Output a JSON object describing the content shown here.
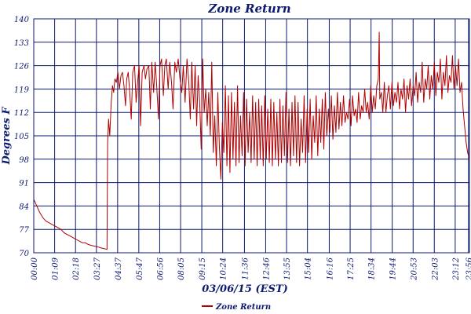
{
  "chart_data": {
    "type": "line",
    "title": "Zone Return",
    "xlabel": "03/06/15 (EST)",
    "ylabel": "Degrees F",
    "ylim": [
      70,
      140
    ],
    "yticks": [
      70,
      77,
      84,
      91,
      98,
      105,
      112,
      119,
      126,
      133,
      140
    ],
    "xlim": [
      0,
      1439
    ],
    "x_tick_labels": [
      "00:00",
      "01:09",
      "02:18",
      "03:27",
      "04:37",
      "05:47",
      "06:56",
      "08:05",
      "09:15",
      "10:24",
      "11:36",
      "12:46",
      "13:55",
      "15:04",
      "16:16",
      "17:25",
      "18:34",
      "19:44",
      "20:53",
      "22:03",
      "23:12",
      "23:56"
    ],
    "x_tick_minutes": [
      0,
      69,
      138,
      207,
      277,
      347,
      416,
      485,
      555,
      624,
      696,
      766,
      835,
      904,
      976,
      1045,
      1114,
      1184,
      1253,
      1323,
      1392,
      1436
    ],
    "grid": true,
    "legend_position": "bottom-left",
    "line_color": "#b00000",
    "series": [
      {
        "name": "Zone Return",
        "points": [
          [
            0,
            86
          ],
          [
            10,
            84
          ],
          [
            20,
            82
          ],
          [
            30,
            80.5
          ],
          [
            40,
            79.5
          ],
          [
            50,
            79
          ],
          [
            60,
            78.5
          ],
          [
            70,
            78
          ],
          [
            80,
            77.5
          ],
          [
            90,
            77
          ],
          [
            100,
            76
          ],
          [
            110,
            75.5
          ],
          [
            120,
            75
          ],
          [
            130,
            74.5
          ],
          [
            140,
            74
          ],
          [
            150,
            73.5
          ],
          [
            160,
            73
          ],
          [
            170,
            73
          ],
          [
            180,
            72.5
          ],
          [
            190,
            72.2
          ],
          [
            200,
            72
          ],
          [
            210,
            71.8
          ],
          [
            220,
            71.5
          ],
          [
            230,
            71.3
          ],
          [
            242,
            71
          ],
          [
            244,
            103
          ],
          [
            247,
            110
          ],
          [
            251,
            105
          ],
          [
            256,
            115
          ],
          [
            260,
            120
          ],
          [
            264,
            118
          ],
          [
            268,
            122
          ],
          [
            273,
            121
          ],
          [
            278,
            124
          ],
          [
            283,
            119
          ],
          [
            288,
            123
          ],
          [
            293,
            124
          ],
          [
            298,
            120
          ],
          [
            303,
            114
          ],
          [
            307,
            122
          ],
          [
            312,
            124
          ],
          [
            317,
            118
          ],
          [
            322,
            110
          ],
          [
            327,
            124
          ],
          [
            333,
            126
          ],
          [
            338,
            115
          ],
          [
            343,
            121
          ],
          [
            348,
            126
          ],
          [
            353,
            108
          ],
          [
            358,
            124
          ],
          [
            364,
            126
          ],
          [
            369,
            122
          ],
          [
            374,
            125
          ],
          [
            380,
            126
          ],
          [
            385,
            113
          ],
          [
            390,
            127
          ],
          [
            396,
            118
          ],
          [
            401,
            127
          ],
          [
            406,
            120
          ],
          [
            412,
            110
          ],
          [
            417,
            126
          ],
          [
            422,
            128
          ],
          [
            428,
            117
          ],
          [
            433,
            126
          ],
          [
            438,
            128
          ],
          [
            444,
            119
          ],
          [
            449,
            127
          ],
          [
            455,
            121
          ],
          [
            460,
            113
          ],
          [
            466,
            127
          ],
          [
            471,
            124
          ],
          [
            477,
            128
          ],
          [
            483,
            122
          ],
          [
            489,
            118
          ],
          [
            494,
            126
          ],
          [
            500,
            115
          ],
          [
            506,
            128
          ],
          [
            512,
            121
          ],
          [
            517,
            110
          ],
          [
            522,
            127
          ],
          [
            528,
            113
          ],
          [
            533,
            126
          ],
          [
            538,
            108
          ],
          [
            543,
            123
          ],
          [
            548,
            115
          ],
          [
            553,
            101
          ],
          [
            558,
            128
          ],
          [
            563,
            112
          ],
          [
            568,
            119
          ],
          [
            573,
            108
          ],
          [
            578,
            118
          ],
          [
            583,
            105
          ],
          [
            588,
            127
          ],
          [
            593,
            100
          ],
          [
            598,
            111
          ],
          [
            603,
            96
          ],
          [
            608,
            118
          ],
          [
            613,
            102
          ],
          [
            618,
            92
          ],
          [
            623,
            109
          ],
          [
            628,
            100
          ],
          [
            633,
            120
          ],
          [
            638,
            96
          ],
          [
            643,
            117
          ],
          [
            648,
            94
          ],
          [
            653,
            118
          ],
          [
            658,
            98
          ],
          [
            663,
            115
          ],
          [
            668,
            96
          ],
          [
            673,
            120
          ],
          [
            678,
            97
          ],
          [
            683,
            111
          ],
          [
            688,
            99
          ],
          [
            693,
            118
          ],
          [
            698,
            96
          ],
          [
            703,
            116
          ],
          [
            708,
            100
          ],
          [
            713,
            112
          ],
          [
            718,
            97
          ],
          [
            723,
            117
          ],
          [
            728,
            98
          ],
          [
            733,
            115
          ],
          [
            738,
            96
          ],
          [
            743,
            116
          ],
          [
            748,
            98
          ],
          [
            753,
            114
          ],
          [
            758,
            96
          ],
          [
            763,
            117
          ],
          [
            768,
            98
          ],
          [
            773,
            113
          ],
          [
            778,
            97
          ],
          [
            783,
            116
          ],
          [
            788,
            96
          ],
          [
            793,
            115
          ],
          [
            798,
            98
          ],
          [
            803,
            112
          ],
          [
            808,
            96
          ],
          [
            813,
            116
          ],
          [
            818,
            97
          ],
          [
            823,
            114
          ],
          [
            828,
            99
          ],
          [
            833,
            118
          ],
          [
            838,
            97
          ],
          [
            843,
            113
          ],
          [
            848,
            96
          ],
          [
            853,
            115
          ],
          [
            858,
            99
          ],
          [
            863,
            117
          ],
          [
            868,
            97
          ],
          [
            873,
            115
          ],
          [
            878,
            96
          ],
          [
            883,
            110
          ],
          [
            888,
            100
          ],
          [
            893,
            117
          ],
          [
            898,
            97
          ],
          [
            903,
            113
          ],
          [
            908,
            100
          ],
          [
            913,
            116
          ],
          [
            918,
            98
          ],
          [
            923,
            111
          ],
          [
            928,
            103
          ],
          [
            933,
            117
          ],
          [
            938,
            99
          ],
          [
            943,
            113
          ],
          [
            948,
            103
          ],
          [
            953,
            116
          ],
          [
            958,
            101
          ],
          [
            963,
            118
          ],
          [
            968,
            105
          ],
          [
            973,
            113
          ],
          [
            978,
            106
          ],
          [
            983,
            117
          ],
          [
            988,
            104
          ],
          [
            993,
            114
          ],
          [
            998,
            106
          ],
          [
            1003,
            118
          ],
          [
            1008,
            107
          ],
          [
            1013,
            115
          ],
          [
            1018,
            108
          ],
          [
            1023,
            117
          ],
          [
            1028,
            109
          ],
          [
            1033,
            112
          ],
          [
            1038,
            110
          ],
          [
            1043,
            116
          ],
          [
            1048,
            108
          ],
          [
            1053,
            117
          ],
          [
            1058,
            111
          ],
          [
            1063,
            113
          ],
          [
            1068,
            109
          ],
          [
            1073,
            118
          ],
          [
            1078,
            110
          ],
          [
            1083,
            114
          ],
          [
            1088,
            112
          ],
          [
            1093,
            119
          ],
          [
            1098,
            112
          ],
          [
            1103,
            115
          ],
          [
            1108,
            110
          ],
          [
            1113,
            120
          ],
          [
            1118,
            112
          ],
          [
            1123,
            117
          ],
          [
            1128,
            113
          ],
          [
            1133,
            120
          ],
          [
            1138,
            122
          ],
          [
            1141,
            136
          ],
          [
            1143,
            116
          ],
          [
            1148,
            118
          ],
          [
            1153,
            112
          ],
          [
            1158,
            121
          ],
          [
            1163,
            112
          ],
          [
            1168,
            117
          ],
          [
            1173,
            120
          ],
          [
            1178,
            113
          ],
          [
            1183,
            121
          ],
          [
            1188,
            114
          ],
          [
            1193,
            118
          ],
          [
            1198,
            115
          ],
          [
            1203,
            121
          ],
          [
            1208,
            113
          ],
          [
            1213,
            119
          ],
          [
            1218,
            116
          ],
          [
            1223,
            122
          ],
          [
            1228,
            112
          ],
          [
            1233,
            120
          ],
          [
            1238,
            116
          ],
          [
            1243,
            122
          ],
          [
            1248,
            114
          ],
          [
            1253,
            120
          ],
          [
            1258,
            117
          ],
          [
            1263,
            124
          ],
          [
            1268,
            115
          ],
          [
            1273,
            121
          ],
          [
            1278,
            118
          ],
          [
            1283,
            127
          ],
          [
            1288,
            115
          ],
          [
            1293,
            122
          ],
          [
            1298,
            119
          ],
          [
            1303,
            126
          ],
          [
            1308,
            116
          ],
          [
            1313,
            123
          ],
          [
            1318,
            119
          ],
          [
            1323,
            127
          ],
          [
            1328,
            117
          ],
          [
            1333,
            124
          ],
          [
            1338,
            121
          ],
          [
            1343,
            128
          ],
          [
            1348,
            116
          ],
          [
            1353,
            124
          ],
          [
            1358,
            120
          ],
          [
            1363,
            129
          ],
          [
            1368,
            118
          ],
          [
            1373,
            123
          ],
          [
            1378,
            121
          ],
          [
            1383,
            129
          ],
          [
            1388,
            119
          ],
          [
            1393,
            126
          ],
          [
            1398,
            120
          ],
          [
            1403,
            128
          ],
          [
            1408,
            118
          ],
          [
            1413,
            121
          ],
          [
            1418,
            113
          ],
          [
            1423,
            108
          ],
          [
            1428,
            103
          ],
          [
            1433,
            100
          ],
          [
            1439,
            98
          ]
        ]
      }
    ]
  }
}
